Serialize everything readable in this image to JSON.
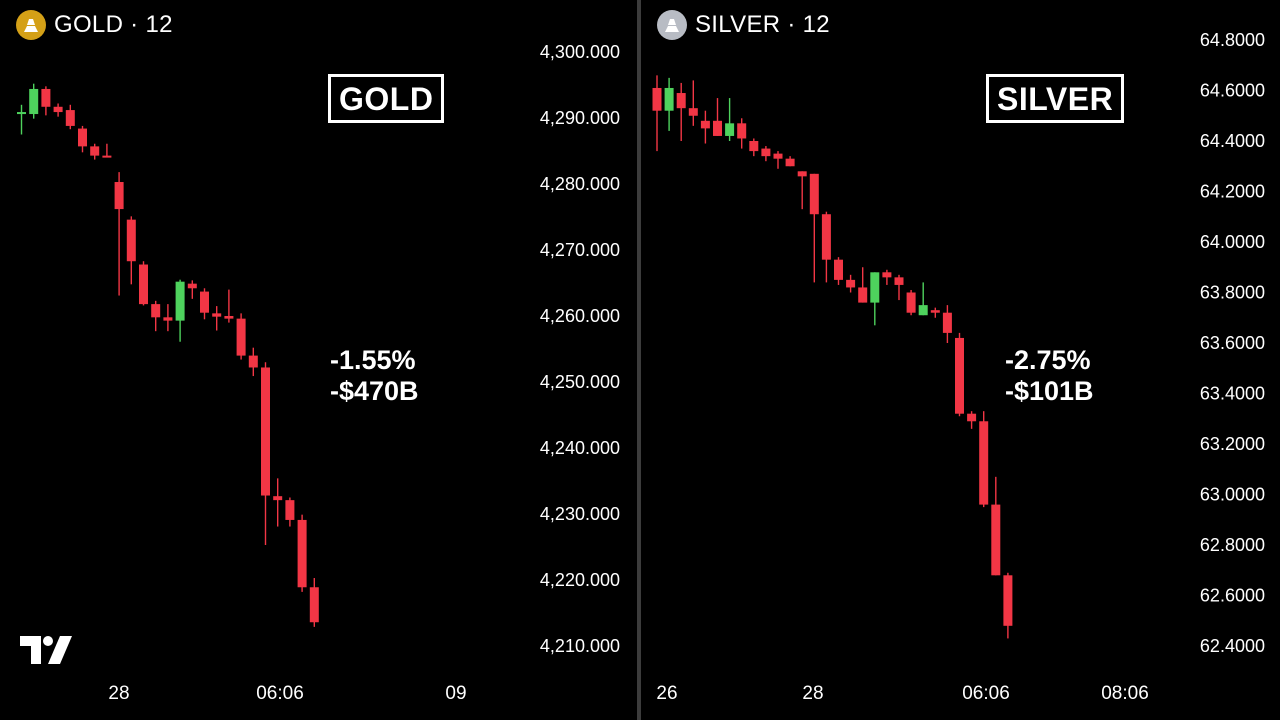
{
  "gold": {
    "symbol": "GOLD · 12",
    "box_label": "GOLD",
    "stat_pct": "-1.55%",
    "stat_value": "-$470B",
    "icon": "gold-coin-icon",
    "icon_color": "#d4a017"
  },
  "silver": {
    "symbol": "SILVER · 12",
    "box_label": "SILVER",
    "stat_pct": "-2.75%",
    "stat_value": "-$101B",
    "icon": "silver-coin-icon",
    "icon_color": "#b8bcc4"
  },
  "colors": {
    "up": "#4ed25d",
    "down": "#f23645",
    "background": "#000000",
    "text": "#ffffff"
  },
  "chart_data": [
    {
      "type": "candlestick",
      "title": "GOLD",
      "ylim": [
        4210,
        4300
      ],
      "y_ticks": [
        4300,
        4290,
        4280,
        4270,
        4260,
        4250,
        4240,
        4230,
        4220,
        4210
      ],
      "y_tick_labels": [
        "4,300.000",
        "4,290.000",
        "4,280.000",
        "4,270.000",
        "4,260.000",
        "4,250.000",
        "4,240.000",
        "4,230.000",
        "4,220.000",
        "4,210.000"
      ],
      "x_labels": [
        "28",
        "06:06",
        "09"
      ],
      "candles": [
        {
          "o": 4290.8,
          "h": 4292.0,
          "l": 4287.5,
          "c": 4290.9
        },
        {
          "o": 4290.6,
          "h": 4295.2,
          "l": 4289.9,
          "c": 4294.4
        },
        {
          "o": 4294.4,
          "h": 4294.8,
          "l": 4290.4,
          "c": 4291.7
        },
        {
          "o": 4291.7,
          "h": 4292.2,
          "l": 4290.2,
          "c": 4290.9
        },
        {
          "o": 4291.2,
          "h": 4292.0,
          "l": 4288.3,
          "c": 4288.8
        },
        {
          "o": 4288.4,
          "h": 4288.8,
          "l": 4284.8,
          "c": 4285.7
        },
        {
          "o": 4285.7,
          "h": 4286.1,
          "l": 4283.7,
          "c": 4284.3
        },
        {
          "o": 4284.3,
          "h": 4286.1,
          "l": 4284.2,
          "c": 4284.1
        },
        {
          "o": 4280.3,
          "h": 4281.8,
          "l": 4263.1,
          "c": 4276.2
        },
        {
          "o": 4274.6,
          "h": 4275.1,
          "l": 4264.8,
          "c": 4268.3
        },
        {
          "o": 4267.8,
          "h": 4268.3,
          "l": 4261.6,
          "c": 4261.8
        },
        {
          "o": 4261.8,
          "h": 4262.3,
          "l": 4257.7,
          "c": 4259.8
        },
        {
          "o": 4259.8,
          "h": 4261.8,
          "l": 4257.7,
          "c": 4259.3
        },
        {
          "o": 4259.3,
          "h": 4265.5,
          "l": 4256.1,
          "c": 4265.2
        },
        {
          "o": 4264.9,
          "h": 4265.4,
          "l": 4262.6,
          "c": 4264.2
        },
        {
          "o": 4263.7,
          "h": 4264.2,
          "l": 4259.5,
          "c": 4260.5
        },
        {
          "o": 4260.4,
          "h": 4261.5,
          "l": 4257.8,
          "c": 4259.9
        },
        {
          "o": 4260.0,
          "h": 4264.0,
          "l": 4259.0,
          "c": 4259.6
        },
        {
          "o": 4259.6,
          "h": 4260.4,
          "l": 4253.4,
          "c": 4254.0
        },
        {
          "o": 4254.0,
          "h": 4255.2,
          "l": 4250.9,
          "c": 4252.2
        },
        {
          "o": 4252.2,
          "h": 4253.0,
          "l": 4225.3,
          "c": 4232.8
        },
        {
          "o": 4232.7,
          "h": 4235.4,
          "l": 4228.1,
          "c": 4232.1
        },
        {
          "o": 4232.1,
          "h": 4232.5,
          "l": 4228.1,
          "c": 4229.1
        },
        {
          "o": 4229.1,
          "h": 4229.9,
          "l": 4218.2,
          "c": 4218.9
        },
        {
          "o": 4218.9,
          "h": 4220.3,
          "l": 4212.9,
          "c": 4213.6
        }
      ]
    },
    {
      "type": "candlestick",
      "title": "SILVER",
      "ylim": [
        62.4,
        64.8
      ],
      "y_ticks": [
        64.8,
        64.6,
        64.4,
        64.2,
        64.0,
        63.8,
        63.6,
        63.4,
        63.2,
        63.0,
        62.8,
        62.6,
        62.4
      ],
      "y_tick_labels": [
        "64.8000",
        "64.6000",
        "64.4000",
        "64.2000",
        "64.0000",
        "63.8000",
        "63.6000",
        "63.4000",
        "63.2000",
        "63.0000",
        "62.8000",
        "62.6000",
        "62.4000"
      ],
      "x_labels": [
        "26",
        "28",
        "06:06",
        "08:06"
      ],
      "candles": [
        {
          "o": 64.61,
          "h": 64.66,
          "l": 64.36,
          "c": 64.52
        },
        {
          "o": 64.52,
          "h": 64.65,
          "l": 64.44,
          "c": 64.61
        },
        {
          "o": 64.59,
          "h": 64.63,
          "l": 64.4,
          "c": 64.53
        },
        {
          "o": 64.53,
          "h": 64.64,
          "l": 64.46,
          "c": 64.5
        },
        {
          "o": 64.48,
          "h": 64.52,
          "l": 64.39,
          "c": 64.45
        },
        {
          "o": 64.48,
          "h": 64.57,
          "l": 64.44,
          "c": 64.42
        },
        {
          "o": 64.42,
          "h": 64.57,
          "l": 64.4,
          "c": 64.47
        },
        {
          "o": 64.47,
          "h": 64.49,
          "l": 64.37,
          "c": 64.41
        },
        {
          "o": 64.4,
          "h": 64.41,
          "l": 64.34,
          "c": 64.36
        },
        {
          "o": 64.37,
          "h": 64.38,
          "l": 64.32,
          "c": 64.34
        },
        {
          "o": 64.35,
          "h": 64.36,
          "l": 64.29,
          "c": 64.33
        },
        {
          "o": 64.33,
          "h": 64.34,
          "l": 64.3,
          "c": 64.3
        },
        {
          "o": 64.28,
          "h": 64.28,
          "l": 64.13,
          "c": 64.26
        },
        {
          "o": 64.27,
          "h": 64.27,
          "l": 63.84,
          "c": 64.11
        },
        {
          "o": 64.11,
          "h": 64.12,
          "l": 63.84,
          "c": 63.93
        },
        {
          "o": 63.93,
          "h": 63.94,
          "l": 63.83,
          "c": 63.85
        },
        {
          "o": 63.85,
          "h": 63.87,
          "l": 63.8,
          "c": 63.82
        },
        {
          "o": 63.82,
          "h": 63.9,
          "l": 63.77,
          "c": 63.76
        },
        {
          "o": 63.76,
          "h": 63.86,
          "l": 63.67,
          "c": 63.88
        },
        {
          "o": 63.88,
          "h": 63.89,
          "l": 63.83,
          "c": 63.86
        },
        {
          "o": 63.86,
          "h": 63.87,
          "l": 63.77,
          "c": 63.83
        },
        {
          "o": 63.8,
          "h": 63.81,
          "l": 63.71,
          "c": 63.72
        },
        {
          "o": 63.71,
          "h": 63.84,
          "l": 63.72,
          "c": 63.75
        },
        {
          "o": 63.73,
          "h": 63.74,
          "l": 63.7,
          "c": 63.72
        },
        {
          "o": 63.72,
          "h": 63.75,
          "l": 63.6,
          "c": 63.64
        },
        {
          "o": 63.62,
          "h": 63.64,
          "l": 63.31,
          "c": 63.32
        },
        {
          "o": 63.32,
          "h": 63.33,
          "l": 63.26,
          "c": 63.29
        },
        {
          "o": 63.29,
          "h": 63.33,
          "l": 62.95,
          "c": 62.96
        },
        {
          "o": 62.96,
          "h": 63.07,
          "l": 62.68,
          "c": 62.68
        },
        {
          "o": 62.68,
          "h": 62.69,
          "l": 62.43,
          "c": 62.48
        }
      ]
    }
  ]
}
